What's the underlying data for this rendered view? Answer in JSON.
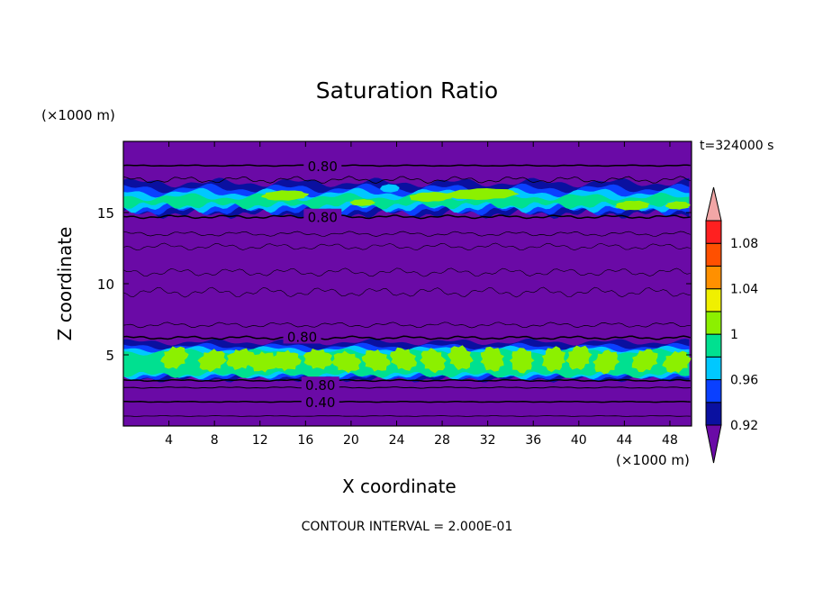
{
  "chart_data": {
    "type": "heatmap",
    "title": "Saturation Ratio",
    "xlabel": "X coordinate",
    "ylabel": "Z coordinate",
    "x_unit": "(×1000 m)",
    "z_unit": "(×1000 m)",
    "time_label": "t=324000 s",
    "contour_note": "CONTOUR INTERVAL = 2.000E-01",
    "xlim": [
      0,
      49.9
    ],
    "ylim": [
      0,
      20
    ],
    "x_ticks": [
      4,
      8,
      12,
      16,
      20,
      24,
      28,
      32,
      36,
      40,
      44,
      48
    ],
    "y_ticks": [
      5,
      10,
      15
    ],
    "contour_labels": [
      {
        "text": "0.80",
        "x": 17.5,
        "z": 18.3
      },
      {
        "text": "0.80",
        "x": 17.5,
        "z": 14.7
      },
      {
        "text": "0.80",
        "x": 15.7,
        "z": 6.3
      },
      {
        "text": "0.80",
        "x": 17.3,
        "z": 2.9
      },
      {
        "text": "0.40",
        "x": 17.3,
        "z": 1.7
      }
    ],
    "colorbar": {
      "levels": [
        0.92,
        0.94,
        0.96,
        0.98,
        1.0,
        1.02,
        1.04,
        1.06,
        1.08,
        1.1
      ],
      "tick_labels": [
        "0.92",
        "0.96",
        "1",
        "1.04",
        "1.08"
      ],
      "colors": [
        "#6a0aa6",
        "#0a10a0",
        "#0a40ff",
        "#00c8ff",
        "#00e090",
        "#8cf000",
        "#f0f000",
        "#ff9000",
        "#ff5000",
        "#ff2020",
        "#f2a6a6"
      ],
      "under_color": "#6a0aa6",
      "over_color": "#f2a6a6"
    },
    "background_color": "#6a0aa6"
  }
}
